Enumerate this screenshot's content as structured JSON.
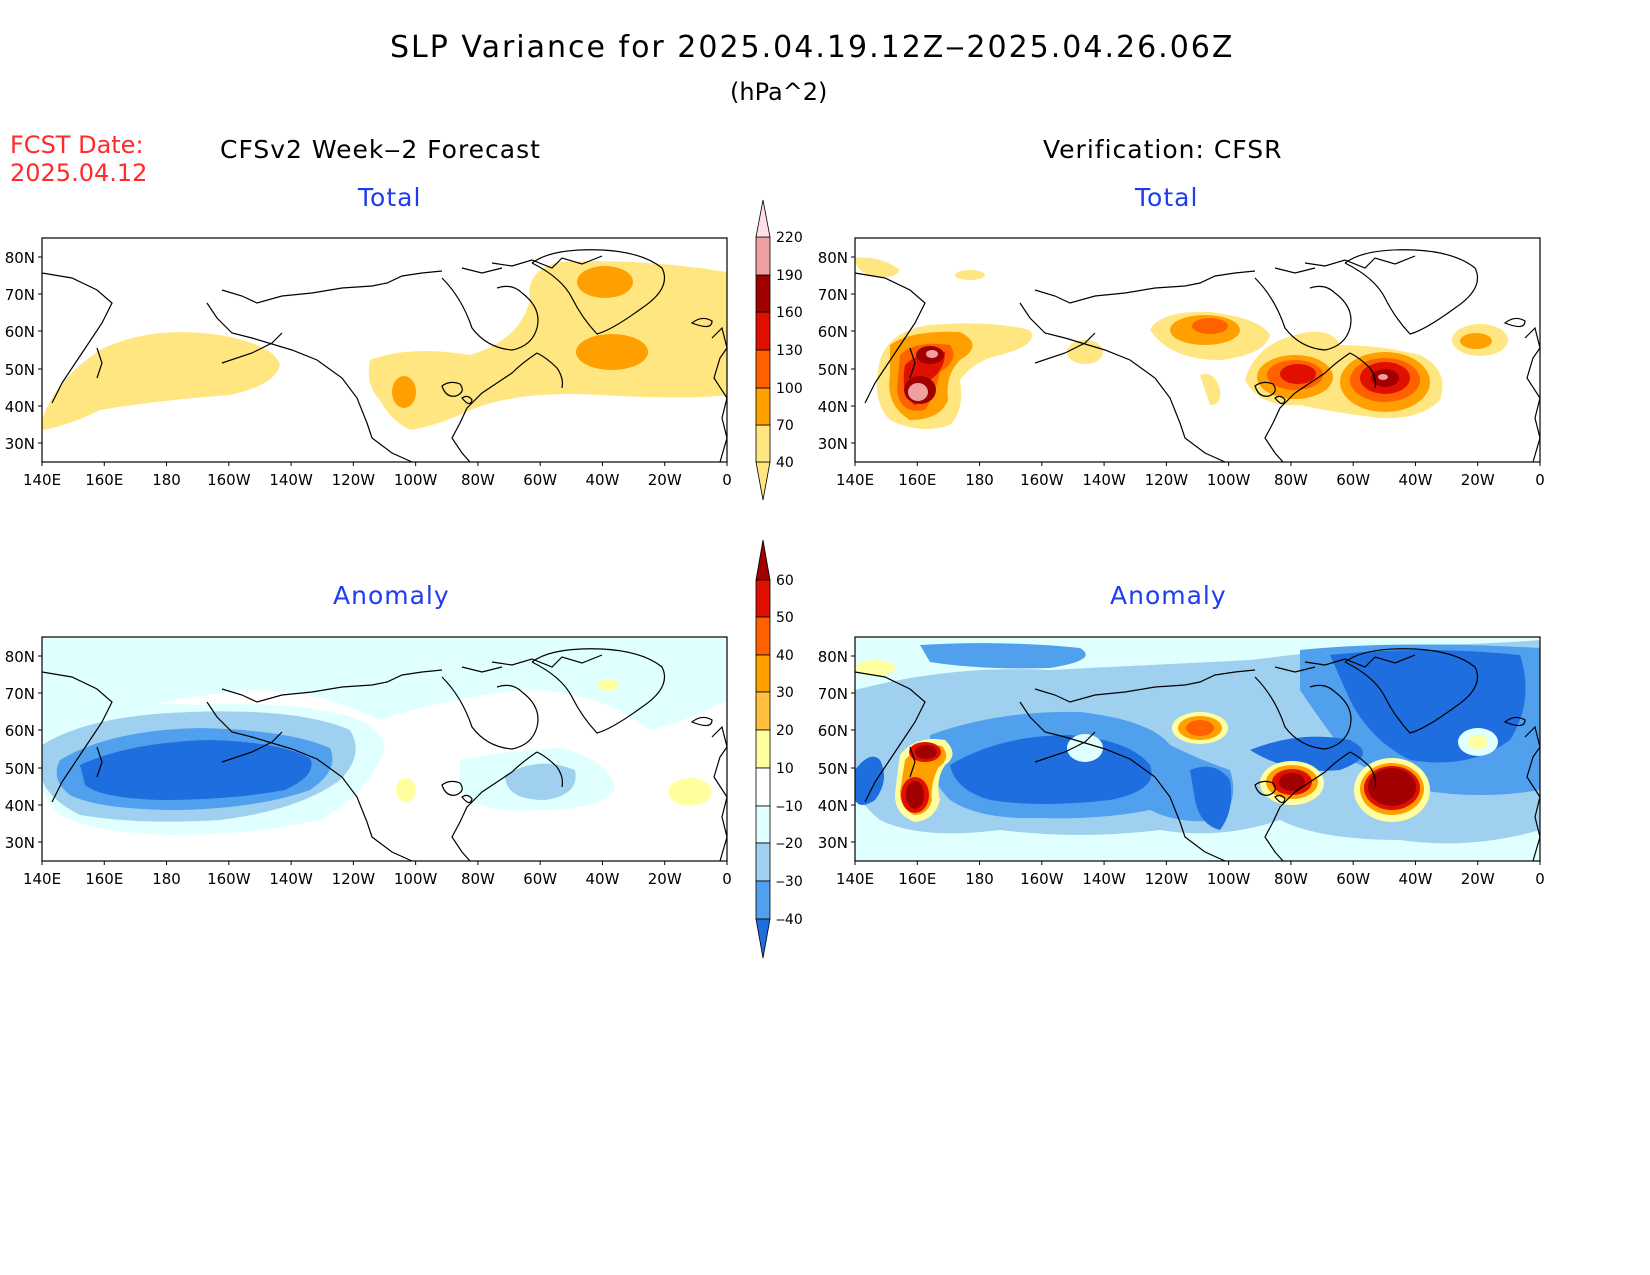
{
  "header": {
    "title": "SLP Variance for 2025.04.19.12Z‒2025.04.26.06Z",
    "units": "(hPa^2)",
    "fcst_label": "FCST Date:",
    "fcst_date": "2025.04.12"
  },
  "columns": {
    "left": "CFSv2 Week‒2 Forecast",
    "right": "Verification: CFSR"
  },
  "panels": [
    {
      "label": "Total"
    },
    {
      "label": "Total"
    },
    {
      "label": "Anomaly"
    },
    {
      "label": "Anomaly"
    }
  ],
  "axes": {
    "lat_ticks": [
      "80N",
      "70N",
      "60N",
      "50N",
      "40N",
      "30N"
    ],
    "lon_ticks": [
      "140E",
      "160E",
      "180",
      "160W",
      "140W",
      "120W",
      "100W",
      "80W",
      "60W",
      "40W",
      "20W",
      "0"
    ]
  },
  "colorbars": {
    "total": {
      "levels": [
        "40",
        "70",
        "100",
        "130",
        "160",
        "190",
        "220"
      ],
      "colors": [
        "#ffe680",
        "#ffa000",
        "#ff6000",
        "#e01000",
        "#a00000",
        "#f0a0a0",
        "#ffe0e8"
      ]
    },
    "anomaly": {
      "levels": [
        "60",
        "50",
        "40",
        "30",
        "20",
        "10",
        "‒10",
        "‒20",
        "‒30",
        "‒40"
      ],
      "colors": [
        "#a00000",
        "#e01000",
        "#ff6000",
        "#ffa000",
        "#ffc040",
        "#ffffa0",
        "#ffffff",
        "#e0ffff",
        "#a0d0f0",
        "#50a0ee",
        "#1e6ee0"
      ]
    }
  }
}
